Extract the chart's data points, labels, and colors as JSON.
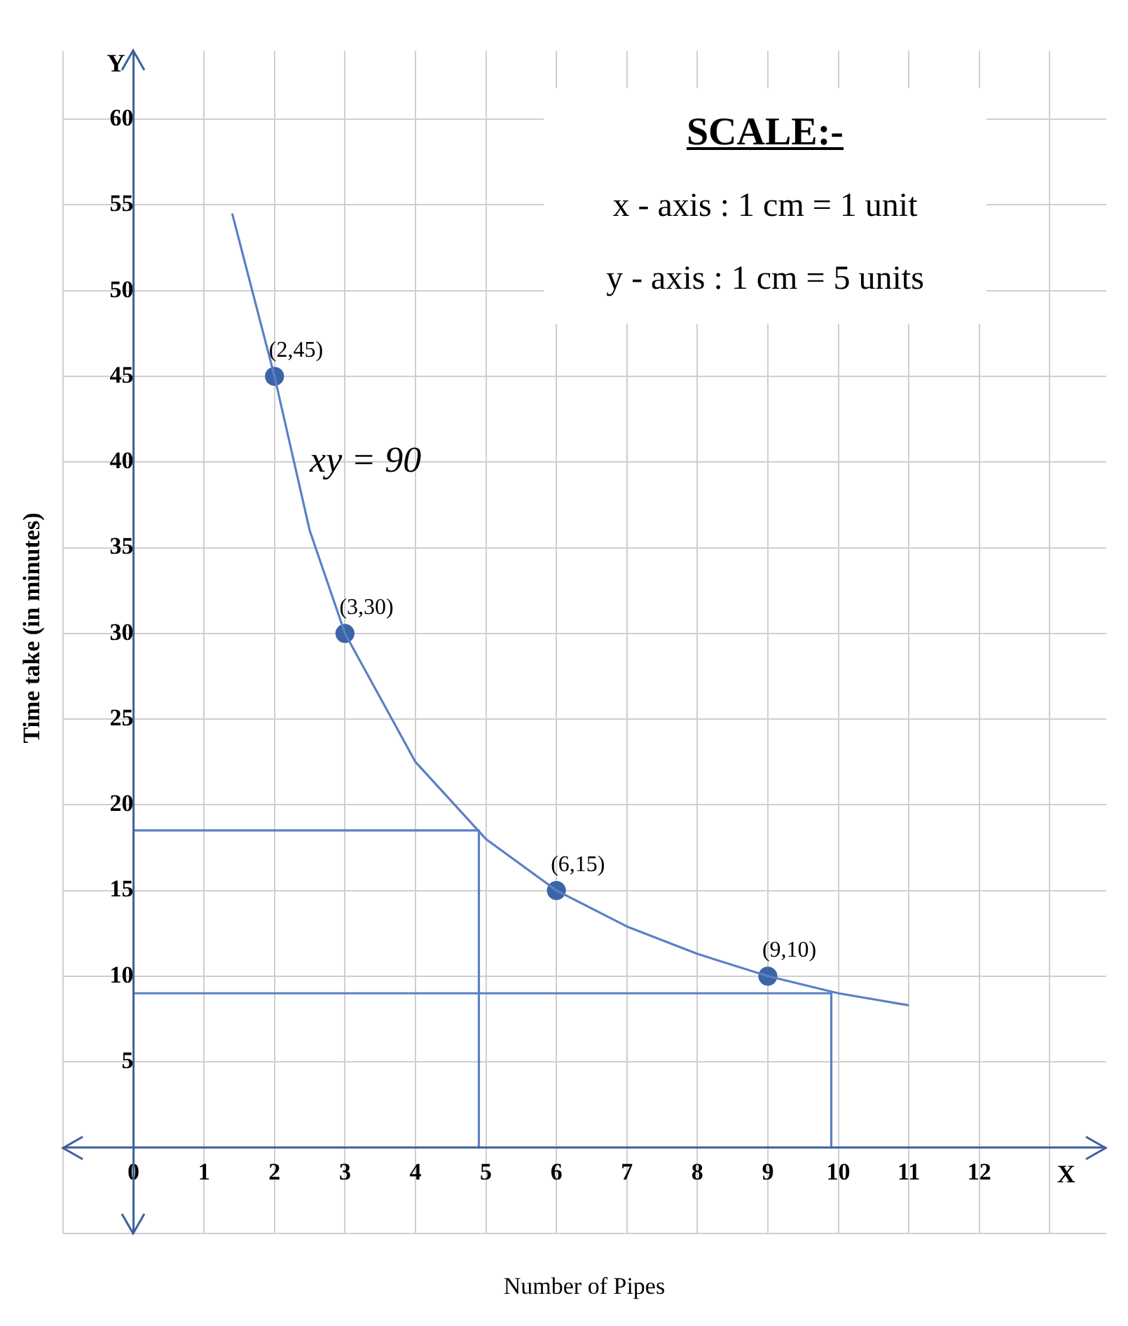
{
  "chart_data": {
    "type": "line",
    "xlabel": "Number of Pipes",
    "ylabel": "Time take (in minutes)",
    "xlim": [
      -1,
      13.8
    ],
    "ylim": [
      -5,
      64
    ],
    "xticks": [
      {
        "value": -1,
        "label": null
      },
      0,
      1,
      2,
      3,
      4,
      5,
      6,
      7,
      8,
      9,
      10,
      11,
      12,
      {
        "value": 13,
        "label": null
      }
    ],
    "yticks": [
      {
        "value": -5,
        "label": null
      },
      {
        "value": 0,
        "label": null
      },
      5,
      10,
      15,
      20,
      25,
      30,
      35,
      40,
      45,
      50,
      55,
      60
    ],
    "grid": true,
    "legend": false,
    "series": [
      {
        "color": "#5b80c4",
        "marker": "none",
        "x": [
          1.4,
          2,
          2.5,
          3,
          4,
          5,
          6,
          7,
          8,
          9,
          10,
          11
        ],
        "values": [
          54.5,
          45,
          36,
          30,
          22.5,
          18,
          15,
          12.9,
          11.3,
          10,
          9,
          8.3
        ]
      },
      {
        "type": "scatter",
        "color": "#3c65a8",
        "marker": "circle",
        "x": [
          2,
          3,
          6,
          9
        ],
        "values": [
          45,
          30,
          15,
          10
        ]
      },
      {
        "color": "#5b80c4",
        "marker": "none",
        "x": [
          0,
          4.9,
          4.9
        ],
        "values": [
          18.5,
          18.5,
          0
        ]
      },
      {
        "color": "#5b80c4",
        "marker": "none",
        "x": [
          0,
          9.9,
          9.9
        ],
        "values": [
          9,
          9,
          0
        ]
      }
    ],
    "annotations": [
      "SCALE:-",
      "x - axis : 1 cm = 1 unit",
      "y - axis : 1 cm = 5 units",
      {
        "text": "(2,45)",
        "x": 2,
        "y": 45
      },
      {
        "text": "(3,30)",
        "x": 3,
        "y": 30
      },
      {
        "text": "(6,15)",
        "x": 6,
        "y": 15
      },
      {
        "text": "(9,10)",
        "x": 9,
        "y": 10
      },
      "xy = 90",
      "X",
      "Y"
    ]
  }
}
